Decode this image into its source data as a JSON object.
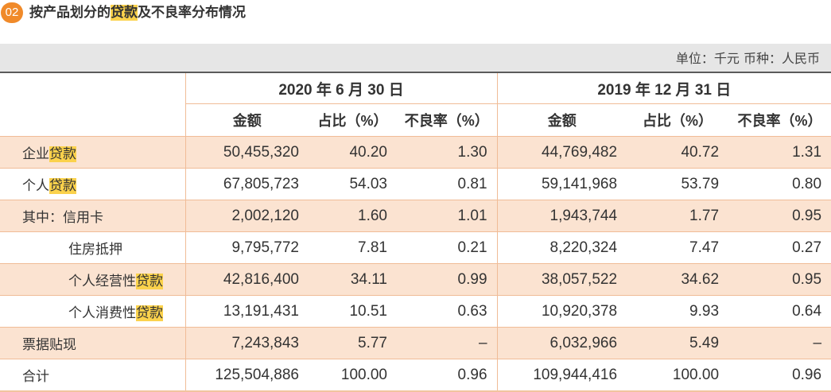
{
  "header": {
    "badge": "02",
    "title_pre": "按产品划分的",
    "title_hl": "贷款",
    "title_post": "及不良率分布情况"
  },
  "unit_note": "单位：千元  币种：人民币",
  "periods": [
    "2020 年 6 月 30 日",
    "2019 年 12 月 31 日"
  ],
  "columns": [
    "金额",
    "占比（%）",
    "不良率（%）",
    "金额",
    "占比（%）",
    "不良率（%）"
  ],
  "rows": [
    {
      "pre": "企业",
      "hl": "贷款",
      "v1": "50,455,320",
      "v2": "40.20",
      "v3": "1.30",
      "v4": "44,769,482",
      "v5": "40.72",
      "v6": "1.31"
    },
    {
      "pre": "个人",
      "hl": "贷款",
      "v1": "67,805,723",
      "v2": "54.03",
      "v3": "0.81",
      "v4": "59,141,968",
      "v5": "53.79",
      "v6": "0.80"
    },
    {
      "pre": "其中：信用卡",
      "hl": "",
      "v1": "2,002,120",
      "v2": "1.60",
      "v3": "1.01",
      "v4": "1,943,744",
      "v5": "1.77",
      "v6": "0.95"
    },
    {
      "pre": "住房抵押",
      "hl": "",
      "v1": "9,795,772",
      "v2": "7.81",
      "v3": "0.21",
      "v4": "8,220,324",
      "v5": "7.47",
      "v6": "0.27"
    },
    {
      "pre": "个人经营性",
      "hl": "贷款",
      "v1": "42,816,400",
      "v2": "34.11",
      "v3": "0.99",
      "v4": "38,057,522",
      "v5": "34.62",
      "v6": "0.95"
    },
    {
      "pre": "个人消费性",
      "hl": "贷款",
      "v1": "13,191,431",
      "v2": "10.51",
      "v3": "0.63",
      "v4": "10,920,378",
      "v5": "9.93",
      "v6": "0.64"
    },
    {
      "pre": "票据贴现",
      "hl": "",
      "v1": "7,243,843",
      "v2": "5.77",
      "v3": "–",
      "v4": "6,032,966",
      "v5": "5.49",
      "v6": "–"
    },
    {
      "pre": "合计",
      "hl": "",
      "v1": "125,504,886",
      "v2": "100.00",
      "v3": "0.96",
      "v4": "109,944,416",
      "v5": "100.00",
      "v6": "0.96"
    }
  ]
}
